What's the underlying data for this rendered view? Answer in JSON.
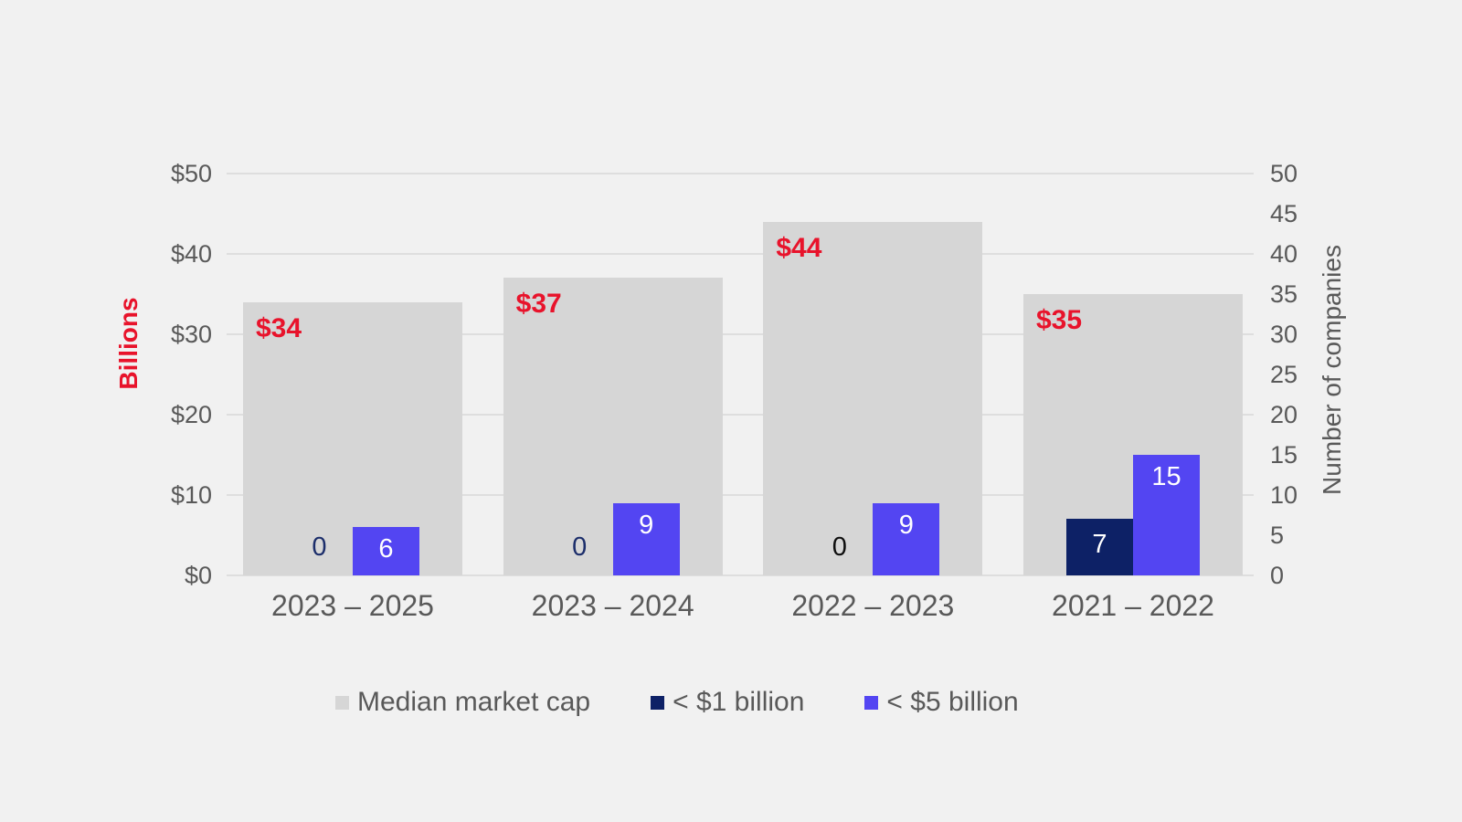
{
  "chart_data": {
    "type": "bar",
    "subtype": "grouped combo bar, dual axis",
    "categories": [
      "2023 – 2025",
      "2023 – 2024",
      "2022 – 2023",
      "2021 – 2022"
    ],
    "series": [
      {
        "name": "Median market cap",
        "axis": "left",
        "unit": "$ billions",
        "values": [
          34,
          37,
          44,
          35
        ],
        "labels": [
          "$34",
          "$37",
          "$44",
          "$35"
        ],
        "color": "#d6d6d6",
        "label_color": "#e8132b"
      },
      {
        "name": "< $1 billion",
        "axis": "right",
        "unit": "number of companies",
        "values": [
          0,
          0,
          0,
          7
        ],
        "labels": [
          "0",
          "0",
          "0",
          "7"
        ],
        "color": "#0d2166",
        "label_colors": [
          "#1c2e6b",
          "#1c2e6b",
          "#0f0f0f",
          "#ffffff"
        ]
      },
      {
        "name": "< $5 billion",
        "axis": "right",
        "unit": "number of companies",
        "values": [
          6,
          9,
          9,
          15
        ],
        "labels": [
          "6",
          "9",
          "9",
          "15"
        ],
        "color": "#5345f2",
        "label_colors": [
          "#ffffff",
          "#ffffff",
          "#ffffff",
          "#ffffff"
        ]
      }
    ],
    "left_axis": {
      "title": "Billions",
      "title_color": "#e8132b",
      "range": [
        0,
        50
      ],
      "tick_step": 10,
      "ticks": [
        "$0",
        "$10",
        "$20",
        "$30",
        "$40",
        "$50"
      ]
    },
    "right_axis": {
      "title": "Number of companies",
      "title_color": "#595959",
      "range": [
        0,
        50
      ],
      "tick_step": 5,
      "ticks": [
        "0",
        "5",
        "10",
        "15",
        "20",
        "25",
        "30",
        "35",
        "40",
        "45",
        "50"
      ]
    },
    "grid": "horizontal lines at left-axis ticks",
    "legend_position": "bottom",
    "legend": [
      {
        "label": "Median market cap",
        "color": "#d6d6d6"
      },
      {
        "label": "< $1 billion",
        "color": "#0d2166"
      },
      {
        "label": "< $5 billion",
        "color": "#5345f2"
      }
    ],
    "background_color": "#f1f1f1"
  }
}
